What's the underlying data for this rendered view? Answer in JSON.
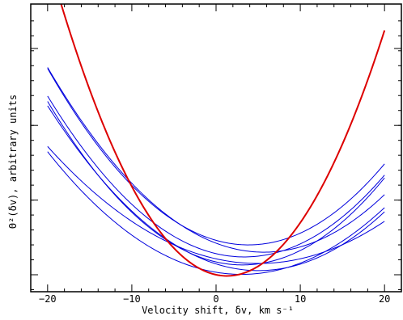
{
  "chart_data": {
    "type": "line",
    "title": "",
    "xlabel": "Velocity shift, δv, km s⁻¹",
    "ylabel": "Θ²(δv), arbitrary units",
    "xlim": [
      -22,
      22
    ],
    "ylim": [
      0,
      1
    ],
    "x_ticks": [
      -20,
      -10,
      0,
      10,
      20
    ],
    "x_tick_labels": [
      "−20",
      "−10",
      "0",
      "10",
      "20"
    ],
    "y_tick_labels_shown": false,
    "grid": false,
    "legend": "none",
    "x": [
      -20,
      -10,
      0,
      10,
      20
    ],
    "series": [
      {
        "color": "#0000dd",
        "values": [
          0.912,
          0.395,
          0.152,
          0.184,
          0.49
        ]
      },
      {
        "color": "#0000dd",
        "values": [
          0.914,
          0.409,
          0.138,
          0.12,
          0.356
        ]
      },
      {
        "color": "#0000dd",
        "values": [
          0.79,
          0.311,
          0.093,
          0.137,
          0.44
        ]
      },
      {
        "color": "#0000dd",
        "values": [
          0.766,
          0.276,
          0.057,
          0.107,
          0.428
        ]
      },
      {
        "color": "#0000dd",
        "values": [
          0.747,
          0.281,
          0.048,
          0.047,
          0.278
        ]
      },
      {
        "color": "#0000dd",
        "values": [
          0.567,
          0.236,
          0.07,
          0.071,
          0.236
        ]
      },
      {
        "color": "#0000dd",
        "values": [
          0.539,
          0.182,
          0.019,
          0.034,
          0.304
        ]
      },
      {
        "color": "#dd0000",
        "values": [
          1.4,
          0.39,
          0.0,
          0.23,
          1.08
        ]
      }
    ]
  }
}
